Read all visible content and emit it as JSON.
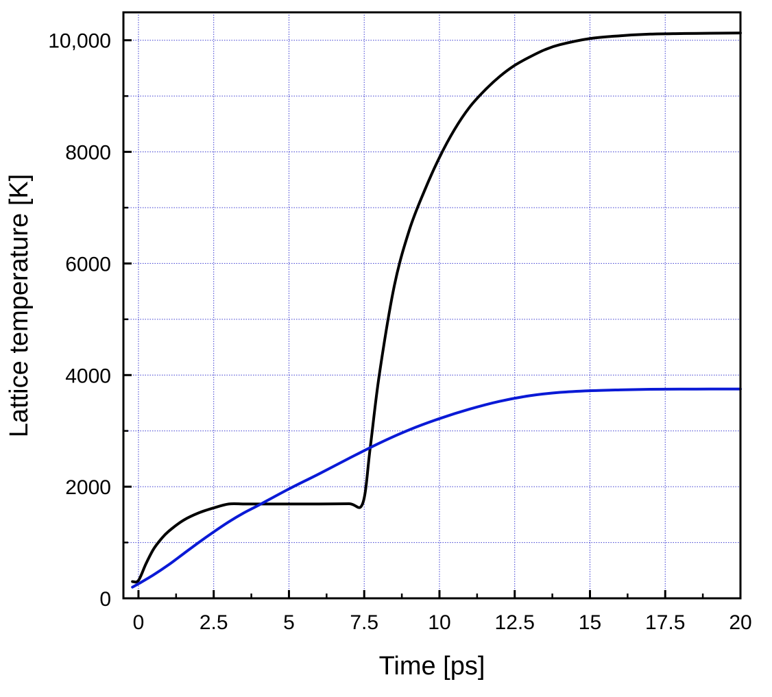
{
  "chart_data": {
    "type": "line",
    "title": "",
    "xlabel": "Time [ps]",
    "ylabel": "Lattice temperature [K]",
    "xlim": [
      -0.5,
      20
    ],
    "ylim": [
      0,
      10500
    ],
    "xticks": [
      0,
      2.5,
      5,
      7.5,
      10,
      12.5,
      15,
      17.5,
      20
    ],
    "xtick_labels": [
      "0",
      "2.5",
      "5",
      "7.5",
      "10",
      "12.5",
      "15",
      "17.5",
      "20"
    ],
    "yticks": [
      0,
      2000,
      4000,
      6000,
      8000,
      10000
    ],
    "ytick_labels": [
      "0",
      "2000",
      "4000",
      "6000",
      "8000",
      "10,000"
    ],
    "grid": true,
    "legend": "none",
    "series": [
      {
        "color": "#000000",
        "x": [
          -0.2,
          0,
          0.25,
          0.5,
          0.75,
          1,
          1.5,
          2,
          2.5,
          3,
          3.5,
          4,
          5,
          6,
          7,
          7.45,
          7.7,
          8,
          8.5,
          9,
          9.5,
          10,
          10.5,
          11,
          11.5,
          12,
          12.5,
          13,
          13.5,
          14,
          15,
          16,
          17,
          18,
          19,
          20
        ],
        "y": [
          300,
          320,
          620,
          880,
          1060,
          1200,
          1400,
          1530,
          1620,
          1690,
          1690,
          1690,
          1690,
          1690,
          1695,
          1700,
          2700,
          4000,
          5600,
          6600,
          7300,
          7900,
          8400,
          8800,
          9100,
          9350,
          9550,
          9700,
          9830,
          9920,
          10030,
          10080,
          10110,
          10120,
          10125,
          10130
        ]
      },
      {
        "color": "#0a1ad6",
        "x": [
          -0.2,
          0,
          0.5,
          1,
          1.5,
          2,
          2.5,
          3,
          3.5,
          4,
          5,
          6,
          7,
          8,
          9,
          10,
          11,
          12,
          13,
          14,
          15,
          16,
          17,
          18,
          19,
          20
        ],
        "y": [
          200,
          260,
          420,
          600,
          800,
          1000,
          1190,
          1370,
          1530,
          1670,
          1960,
          2230,
          2510,
          2780,
          3020,
          3220,
          3390,
          3530,
          3630,
          3690,
          3720,
          3735,
          3745,
          3748,
          3750,
          3750
        ]
      }
    ]
  }
}
